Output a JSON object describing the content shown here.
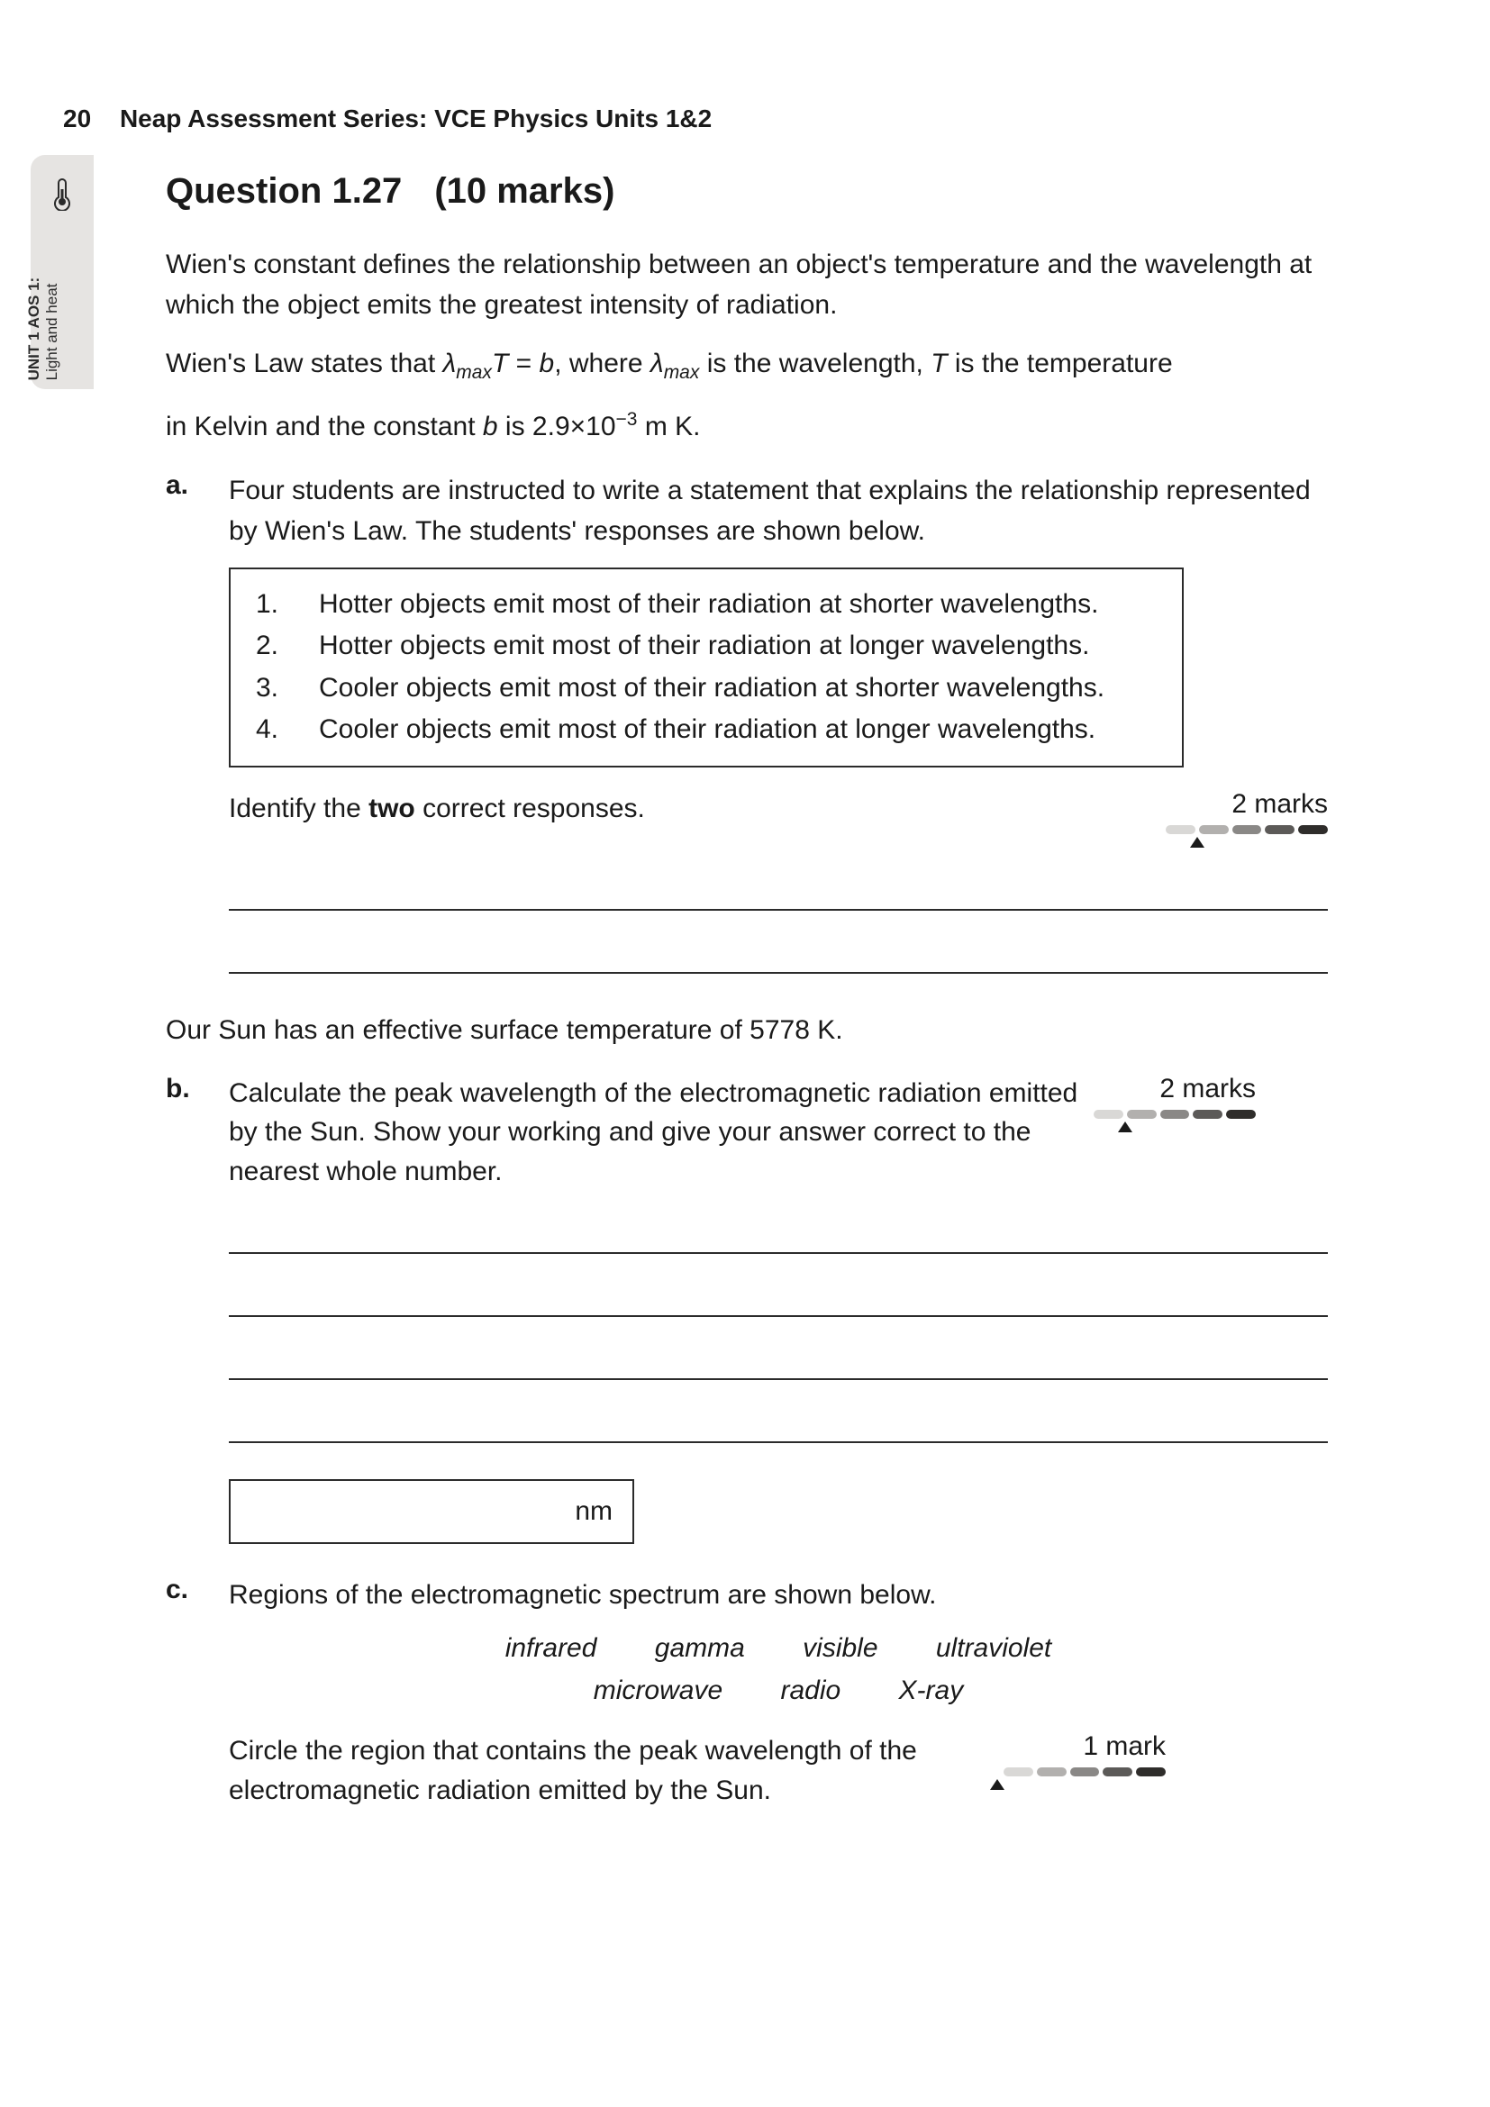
{
  "page_number": "20",
  "header_series": "Neap Assessment Series: VCE Physics Units 1&2",
  "tab": {
    "unit_line": "UNIT 1 AOS 1:",
    "topic_line": "Light and heat"
  },
  "question": {
    "number": "Question 1.27",
    "marks_label": "(10 marks)"
  },
  "intro_p1_a": "Wien's constant defines the relationship between an object's temperature and the wavelength at which the object emits the greatest intensity of radiation.",
  "wien_prefix": "Wien's Law states that ",
  "wien_var_lambda": "λ",
  "wien_sub_max": "max",
  "wien_T": "T",
  "wien_eq_mid": " = ",
  "wien_b": "b",
  "wien_comma_where": ",  where ",
  "wien_is_wavelength": " is the wavelength, ",
  "wien_is_temp": " is the temperature",
  "wien_line2_a": "in Kelvin and the constant ",
  "wien_line2_b": " is 2.9",
  "wien_times": "×",
  "wien_exp": "10",
  "wien_exp_sup": "−3",
  "wien_units": " m K.",
  "part_a": {
    "label": "a.",
    "text": "Four students are instructed to write a statement that explains the relationship represented by Wien's Law. The students' responses are shown below.",
    "options": [
      {
        "n": "1.",
        "t": "Hotter objects emit most of their radiation at shorter wavelengths."
      },
      {
        "n": "2.",
        "t": "Hotter objects emit most of their radiation at longer wavelengths."
      },
      {
        "n": "3.",
        "t": "Cooler objects emit most of their radiation at shorter wavelengths."
      },
      {
        "n": "4.",
        "t": "Cooler objects emit most of their radiation at longer wavelengths."
      }
    ],
    "instruction_pre": "Identify the ",
    "instruction_bold": "two",
    "instruction_post": " correct responses.",
    "marks": "2 marks",
    "answer_lines": 2
  },
  "sun_line": "Our Sun has an effective surface temperature of 5778 K.",
  "part_b": {
    "label": "b.",
    "text": "Calculate the peak wavelength of the electromagnetic radiation emitted by the Sun. Show your working and give your answer correct to the nearest whole number.",
    "marks": "2 marks",
    "answer_lines": 4,
    "unit": "nm"
  },
  "part_c": {
    "label": "c.",
    "text": "Regions of the electromagnetic spectrum are shown below.",
    "options_row1": [
      "infrared",
      "gamma",
      "visible",
      "ultraviolet"
    ],
    "options_row2": [
      "microwave",
      "radio",
      "X-ray"
    ],
    "instruction": "Circle the region that contains the peak wavelength of the electromagnetic radiation emitted by the Sun.",
    "marks": "1 mark"
  },
  "difficulty": {
    "segments": [
      {
        "w": 38,
        "c": "#d9d8d6"
      },
      {
        "w": 38,
        "c": "#b2b0ae"
      },
      {
        "w": 38,
        "c": "#8a8886"
      },
      {
        "w": 38,
        "c": "#5c5a58"
      },
      {
        "w": 38,
        "c": "#2f2d2b"
      }
    ],
    "pointer_index_a": 1,
    "pointer_index_b": 1,
    "pointer_index_c": 0
  },
  "colors": {
    "text": "#1a1a1a",
    "tab_bg": "#e6e4e2",
    "border": "#2b2b2b"
  }
}
